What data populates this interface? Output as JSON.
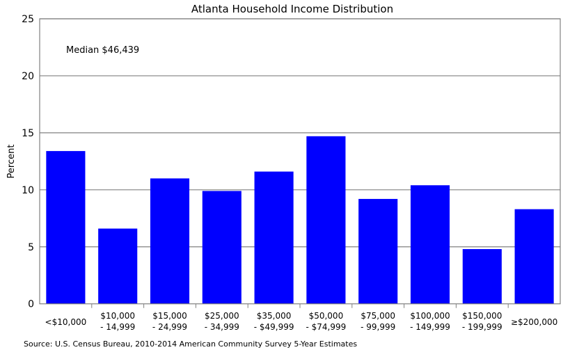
{
  "chart_data": {
    "type": "bar",
    "title": "Atlanta Household Income Distribution",
    "ylabel": "Percent",
    "xlabel": "",
    "ylim": [
      0,
      25
    ],
    "yticks": [
      0,
      5,
      10,
      15,
      20,
      25
    ],
    "grid": true,
    "categories": [
      [
        "<$10,000"
      ],
      [
        "$10,000",
        "- 14,999"
      ],
      [
        "$15,000",
        "- 24,999"
      ],
      [
        "$25,000",
        "- 34,999"
      ],
      [
        "$35,000",
        "- $49,999"
      ],
      [
        "$50,000",
        "- $74,999"
      ],
      [
        "$75,000",
        "- 99,999"
      ],
      [
        "$100,000",
        "- 149,999"
      ],
      [
        "$150,000",
        "- 199,999"
      ],
      [
        "≥$200,000"
      ]
    ],
    "values": [
      13.4,
      6.6,
      11.0,
      9.9,
      11.6,
      14.7,
      9.2,
      10.4,
      4.8,
      8.3
    ],
    "bar_color": "#0000ff",
    "annotation": "Median $46,439",
    "source": "Source: U.S. Census Bureau, 2010-2014 American Community Survey 5-Year Estimates"
  }
}
